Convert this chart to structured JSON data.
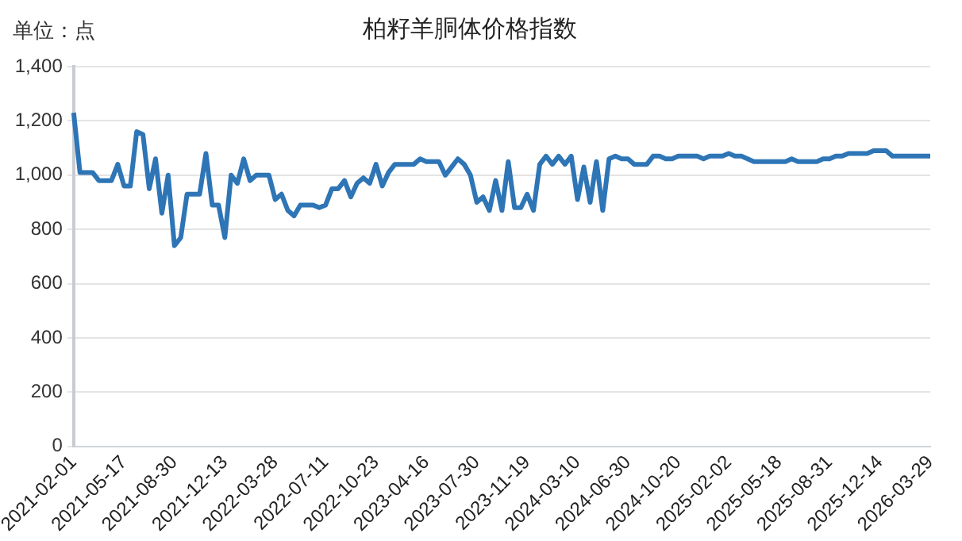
{
  "chart_data": {
    "type": "line",
    "title": "柏籽羊胴体价格指数",
    "ylabel": "单位：点",
    "categories": [
      "2021-02-01",
      null,
      null,
      null,
      null,
      null,
      null,
      null,
      "2021-05-17",
      null,
      null,
      null,
      null,
      null,
      null,
      null,
      "2021-08-30",
      null,
      null,
      null,
      null,
      null,
      null,
      null,
      "2021-12-13",
      null,
      null,
      null,
      null,
      null,
      null,
      null,
      "2022-03-28",
      null,
      null,
      null,
      null,
      null,
      null,
      null,
      "2022-07-11",
      null,
      null,
      null,
      null,
      null,
      null,
      null,
      "2022-10-23",
      null,
      null,
      null,
      null,
      null,
      null,
      null,
      "2023-04-16",
      null,
      null,
      null,
      null,
      null,
      null,
      null,
      "2023-07-30",
      null,
      null,
      null,
      null,
      null,
      null,
      null,
      "2023-11-19",
      null,
      null,
      null,
      null,
      null,
      null,
      null,
      "2024-03-10",
      null,
      null,
      null,
      null,
      null,
      null,
      null,
      "2024-06-30",
      null,
      null,
      null,
      null,
      null,
      null,
      null,
      "2024-10-20",
      null,
      null,
      null,
      null,
      null,
      null,
      null,
      "2025-02-02",
      null,
      null,
      null,
      null,
      null,
      null,
      null,
      "2025-05-18",
      null,
      null,
      null,
      null,
      null,
      null,
      null,
      "2025-08-31",
      null,
      null,
      null,
      null,
      null,
      null,
      null,
      "2025-12-14",
      null,
      null,
      null,
      null,
      null,
      null,
      null,
      "2026-03-29"
    ],
    "series": [
      {
        "color": "#2e75b6",
        "values": [
          1230,
          1010,
          1010,
          1010,
          980,
          980,
          980,
          1040,
          960,
          960,
          1160,
          1150,
          950,
          1060,
          860,
          1000,
          740,
          770,
          930,
          930,
          930,
          1080,
          890,
          890,
          770,
          1000,
          970,
          1060,
          980,
          1000,
          1000,
          1000,
          910,
          930,
          870,
          850,
          890,
          890,
          890,
          880,
          890,
          950,
          950,
          980,
          920,
          970,
          990,
          970,
          1040,
          960,
          1010,
          1040,
          1040,
          1040,
          1040,
          1060,
          1050,
          1050,
          1050,
          1000,
          1030,
          1060,
          1040,
          1000,
          900,
          920,
          870,
          980,
          870,
          1050,
          880,
          880,
          930,
          870,
          1040,
          1070,
          1040,
          1070,
          1040,
          1070,
          910,
          1030,
          900,
          1050,
          870,
          1060,
          1070,
          1060,
          1060,
          1040,
          1040,
          1040,
          1070,
          1070,
          1060,
          1060,
          1070,
          1070,
          1070,
          1070,
          1060,
          1070,
          1070,
          1070,
          1080,
          1070,
          1070,
          1060,
          1050,
          1050,
          1050,
          1050,
          1050,
          1050,
          1060,
          1050,
          1050,
          1050,
          1050,
          1060,
          1060,
          1070,
          1070,
          1080,
          1080,
          1080,
          1080,
          1090,
          1090,
          1090,
          1070,
          1070,
          1070,
          1070,
          1070,
          1070,
          1070
        ]
      }
    ],
    "ylim": [
      0,
      1400
    ],
    "yticks": [
      0,
      200,
      400,
      600,
      800,
      {
        "value": 1000,
        "label": "1,000"
      },
      {
        "value": 1200,
        "label": "1,200"
      },
      {
        "value": 1400,
        "label": "1,400"
      }
    ],
    "grid": "y",
    "legend": false,
    "marker": "none",
    "line_style": "solid"
  }
}
